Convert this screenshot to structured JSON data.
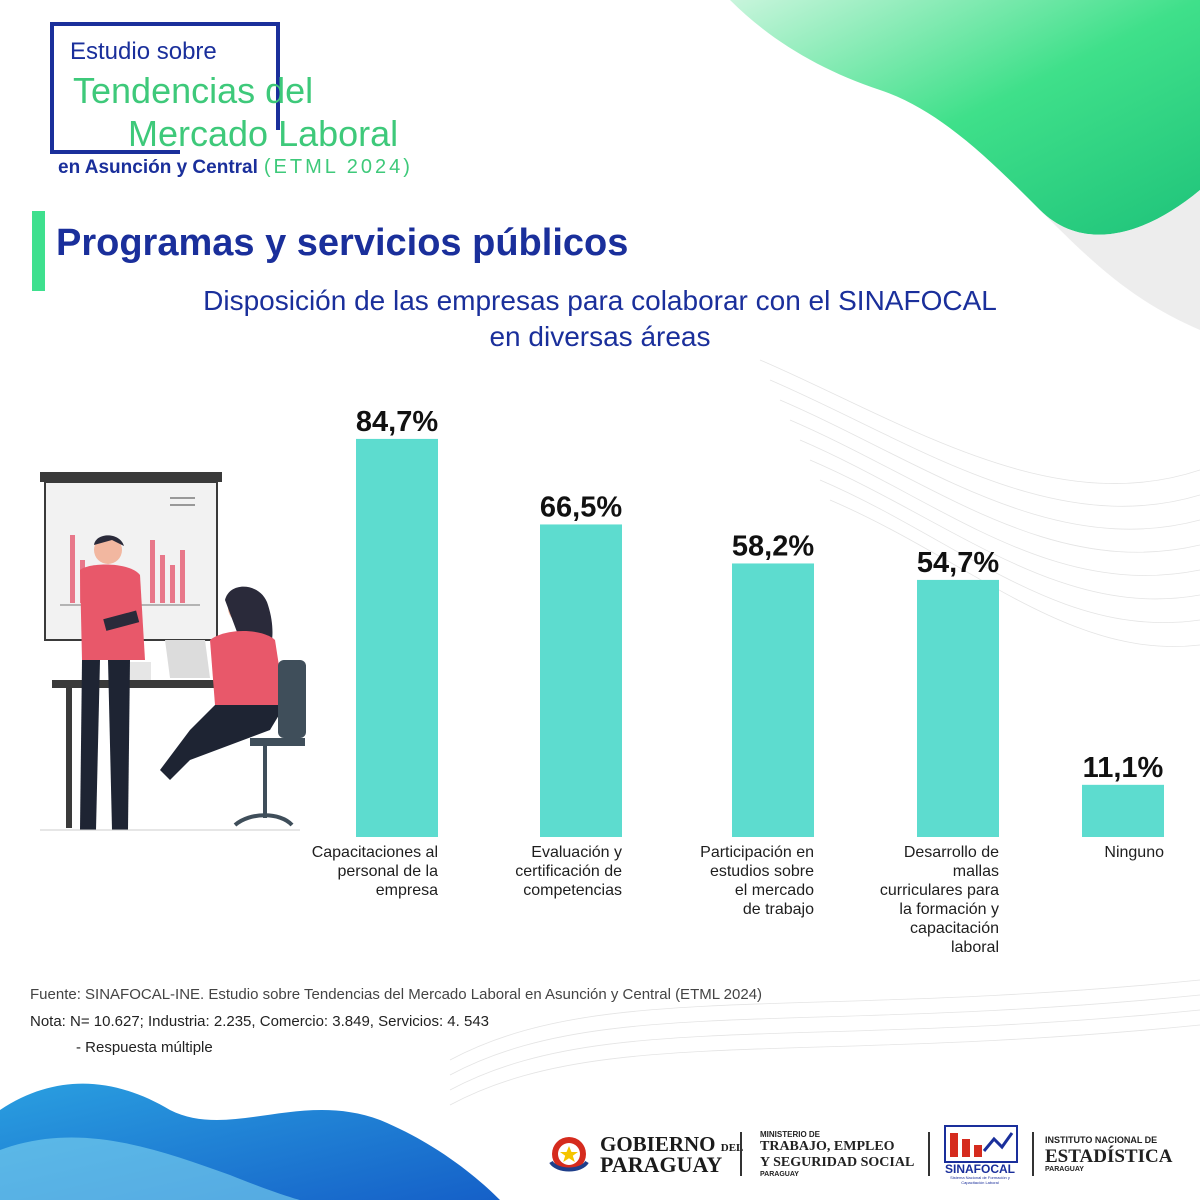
{
  "header": {
    "study_line1": "Estudio sobre",
    "study_line2": "Tendencias del",
    "study_line3": "Mercado Laboral",
    "study_line4": "en Asunción y Central",
    "study_etml": "(ETML 2024)"
  },
  "section": {
    "title": "Programas y servicios públicos",
    "subtitle_line1": "Disposición de las empresas para colaborar con el SINAFOCAL",
    "subtitle_line2": "en diversas áreas"
  },
  "chart_data": {
    "type": "bar",
    "title": "Disposición de las empresas para colaborar con el SINAFOCAL en diversas áreas",
    "categories": [
      "Capacitaciones al personal de la empresa",
      "Evaluación y certificación de competencias",
      "Participación en estudios sobre el mercado de trabajo",
      "Desarrollo de mallas curriculares para la formación y capacitación laboral",
      "Ninguno"
    ],
    "category_lines": [
      [
        "Capacitaciones al",
        "personal de la",
        "empresa"
      ],
      [
        "Evaluación y",
        "certificación de",
        "competencias"
      ],
      [
        "Participación en",
        "estudios sobre",
        "el mercado",
        "de trabajo"
      ],
      [
        "Desarrollo de",
        "mallas",
        "curriculares para",
        "la formación y",
        "capacitación",
        "laboral"
      ],
      [
        "Ninguno"
      ]
    ],
    "values": [
      84.7,
      66.5,
      58.2,
      54.7,
      11.1
    ],
    "value_labels": [
      "84,7%",
      "66,5%",
      "58,2%",
      "54,7%",
      "11,1%"
    ],
    "unit": "%",
    "ylim": [
      0,
      100
    ],
    "grid": false,
    "bar_color": "#5ddccf"
  },
  "notes": {
    "source": "Fuente: SINAFOCAL-INE. Estudio sobre Tendencias del Mercado Laboral en Asunción y Central (ETML 2024)",
    "note": "Nota: N= 10.627; Industria: 2.235, Comercio: 3.849, Servicios: 4. 543",
    "note2": "- Respuesta múltiple"
  },
  "footer": {
    "gobierno_line1": "GOBIERNO",
    "gobierno_del": "DEL",
    "gobierno_line2": "PARAGUAY",
    "ministerio_l1": "MINISTERIO DE",
    "ministerio_l2": "TRABAJO, EMPLEO",
    "ministerio_l3": "Y SEGURIDAD SOCIAL",
    "ministerio_l4": "PARAGUAY",
    "sinafocal_name": "SINAFOCAL",
    "sinafocal_sub": "Sistema Nacional de Formación y Capacitación Laboral",
    "ine_l1": "INSTITUTO NACIONAL DE",
    "ine_l2": "ESTADÍSTICA",
    "ine_l3": "PARAGUAY"
  },
  "colors": {
    "brand_blue": "#1a2f9b",
    "brand_green": "#3ec97a",
    "bar": "#5ddccf"
  }
}
